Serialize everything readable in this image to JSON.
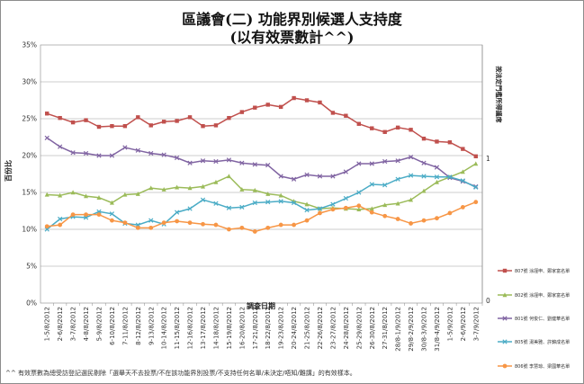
{
  "title": "區議會(二) 功能界別候選人支持度",
  "subtitle": "(以有效票數計^^)",
  "footnote": "^^ 有效票數為總受訪登記選民剔除「選舉天不去投票/不在該功能界別投票/不支持任何名單/未決定/唔知/難講」的有效樣本。",
  "chart_data": {
    "type": "line",
    "ylabel": "百份比",
    "xlabel": "調查日期",
    "y2label": "按法定門檻所得議席",
    "ylim": [
      0,
      35
    ],
    "yticks": [
      "0%",
      "5%",
      "10%",
      "15%",
      "20%",
      "25%",
      "30%",
      "35%"
    ],
    "y2ticks": [
      "0",
      "1"
    ],
    "grid": true,
    "legend_position": "right",
    "categories": [
      "1-5/8/2012",
      "2-6/8/2012",
      "3-7/8/2012",
      "4-8/8/2012",
      "5-9/8/2012",
      "6-10/8/2012",
      "7-11/8/2012",
      "8-12/8/2012",
      "9-13/8/2012",
      "10-14/8/2012",
      "11-15/8/2012",
      "12-16/8/2012",
      "13-17/8/2012",
      "14-18/8/2012",
      "15-19/8/2012",
      "16-20/8/2012",
      "17-21/8/2012",
      "18-22/8/2012",
      "19-23/8/2012",
      "20-24/8/2012",
      "21-25/8/2012",
      "22-26/8/2012",
      "23-27/8/2012",
      "24-28/8/2012",
      "25-29/8/2012",
      "26-30/8/2012",
      "27-31/8/2012",
      "28/8-1/9/2012",
      "29/8-2/9/2012",
      "30/8-3/9/2012",
      "31/8-4/9/2012",
      "1-5/9/2012",
      "2-6/9/2012",
      "3-7/9/2012"
    ],
    "xtick_labels": [
      "1-5/8/2012",
      "2-6/8/2012",
      "3-7/8/2012",
      "4-8/8/2012",
      "5-9/8/2012",
      "6-10/8/2012",
      "7-11/8/2012",
      "8-12/8/2012",
      "9-13/8/2012",
      "10-14/8/2012",
      "11-15/8/2012",
      "12-16/8/2012",
      "13-17/8/2012",
      "14-18/8/2012",
      "15-19/8/2012",
      "16-20/8/2012",
      "17-21/8/2012",
      "18-22/8/2012",
      "19-23/8/2012",
      "20-24/8/2012",
      "21-25/8/2012",
      "22-26/8/2012",
      "23-27/8/2012",
      "24-28/8/2012",
      "25-29/8/2012",
      "26-30/8/2012",
      "27-31/8/2012",
      "28/8-1/9/2012",
      "29/8-2/9/2012",
      "30/8-3/9/2012",
      "31/8-4/9/2012",
      "1-5/9/2012",
      "2-6/9/2012",
      "3-7/9/2012"
    ],
    "series": [
      {
        "name": "807號 涂謹申、鄭家富名單",
        "color": "#c0504d",
        "marker": "square",
        "values": [
          25.7,
          25.1,
          24.5,
          24.8,
          23.9,
          24.0,
          24.0,
          25.2,
          24.1,
          24.6,
          24.7,
          25.2,
          24.0,
          24.1,
          25.1,
          25.9,
          26.5,
          26.9,
          26.6,
          27.8,
          27.5,
          27.2,
          25.8,
          25.4,
          24.3,
          23.7,
          23.2,
          23.8,
          23.5,
          22.3,
          21.9,
          21.8,
          20.9,
          19.9
        ]
      },
      {
        "name": "802號 涂謹申、鄭家富名單",
        "color": "#9bbb59",
        "marker": "triangle",
        "values": [
          14.7,
          14.6,
          15.0,
          14.5,
          14.3,
          13.6,
          14.7,
          14.8,
          15.6,
          15.4,
          15.7,
          15.6,
          15.8,
          16.4,
          17.2,
          15.4,
          15.3,
          14.8,
          14.6,
          13.8,
          13.4,
          12.8,
          12.9,
          12.8,
          12.7,
          12.8,
          13.3,
          13.5,
          14.0,
          15.2,
          16.4,
          17.1,
          17.8,
          18.9
        ]
      },
      {
        "name": "801號 何俊仁、劉健華名單",
        "color": "#8064a2",
        "marker": "x",
        "values": [
          22.4,
          21.2,
          20.4,
          20.3,
          20.0,
          20.0,
          21.1,
          20.7,
          20.3,
          20.1,
          19.7,
          19.0,
          19.3,
          19.2,
          19.4,
          19.0,
          18.8,
          18.7,
          17.2,
          16.8,
          17.4,
          17.2,
          17.2,
          17.8,
          18.9,
          18.9,
          19.2,
          19.3,
          19.8,
          19.0,
          18.4,
          17.0,
          16.5,
          15.8
        ]
      },
      {
        "name": "805號 湯美雅、許錦成名單",
        "color": "#4bacc6",
        "marker": "x",
        "values": [
          10.0,
          11.4,
          11.7,
          11.6,
          12.4,
          12.1,
          10.8,
          10.6,
          11.2,
          10.7,
          12.3,
          12.8,
          14.0,
          13.5,
          12.9,
          13.0,
          13.6,
          13.7,
          13.8,
          13.6,
          12.6,
          12.8,
          13.4,
          14.2,
          15.0,
          16.1,
          16.0,
          16.8,
          17.3,
          17.2,
          17.1,
          17.1,
          16.6,
          15.7
        ]
      },
      {
        "name": "806號 李慧琼、梁國華名單",
        "color": "#f79646",
        "marker": "circle",
        "values": [
          10.4,
          10.6,
          12.0,
          12.0,
          12.0,
          11.2,
          10.9,
          10.2,
          10.2,
          10.9,
          11.1,
          10.9,
          10.7,
          10.6,
          10.0,
          10.2,
          9.7,
          10.2,
          10.6,
          10.6,
          11.2,
          12.2,
          12.7,
          12.9,
          13.2,
          12.3,
          11.8,
          11.4,
          10.8,
          11.2,
          11.5,
          12.2,
          13.0,
          13.7
        ]
      }
    ]
  }
}
